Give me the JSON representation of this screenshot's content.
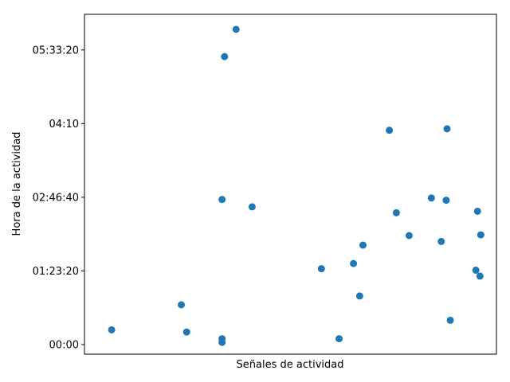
{
  "chart_data": {
    "type": "scatter",
    "xlabel": "Señales de actividad",
    "ylabel": "Hora de la actividad",
    "grid": false,
    "legend": "none",
    "marker_color": "#1f77b4",
    "xlim": [
      0,
      1
    ],
    "ylim": [
      -650,
      22420
    ],
    "y_ticks": [
      {
        "value": 0,
        "label": "00:00"
      },
      {
        "value": 5000,
        "label": "01:23:20"
      },
      {
        "value": 10000,
        "label": "02:46:40"
      },
      {
        "value": 15000,
        "label": "04:10"
      },
      {
        "value": 20000,
        "label": "05:33:20"
      }
    ],
    "points": [
      {
        "x": 0.066,
        "y": 1000
      },
      {
        "x": 0.235,
        "y": 2700
      },
      {
        "x": 0.248,
        "y": 850
      },
      {
        "x": 0.334,
        "y": 9850
      },
      {
        "x": 0.334,
        "y": 400
      },
      {
        "x": 0.334,
        "y": 150
      },
      {
        "x": 0.34,
        "y": 19550
      },
      {
        "x": 0.368,
        "y": 21400
      },
      {
        "x": 0.407,
        "y": 9350
      },
      {
        "x": 0.575,
        "y": 5150
      },
      {
        "x": 0.618,
        "y": 400
      },
      {
        "x": 0.653,
        "y": 5500
      },
      {
        "x": 0.668,
        "y": 3300
      },
      {
        "x": 0.676,
        "y": 6750
      },
      {
        "x": 0.74,
        "y": 14550
      },
      {
        "x": 0.757,
        "y": 8950
      },
      {
        "x": 0.788,
        "y": 7400
      },
      {
        "x": 0.842,
        "y": 9950
      },
      {
        "x": 0.866,
        "y": 7000
      },
      {
        "x": 0.878,
        "y": 9800
      },
      {
        "x": 0.88,
        "y": 14650
      },
      {
        "x": 0.888,
        "y": 1650
      },
      {
        "x": 0.95,
        "y": 5050
      },
      {
        "x": 0.954,
        "y": 9050
      },
      {
        "x": 0.96,
        "y": 4650
      },
      {
        "x": 0.962,
        "y": 7450
      }
    ]
  }
}
